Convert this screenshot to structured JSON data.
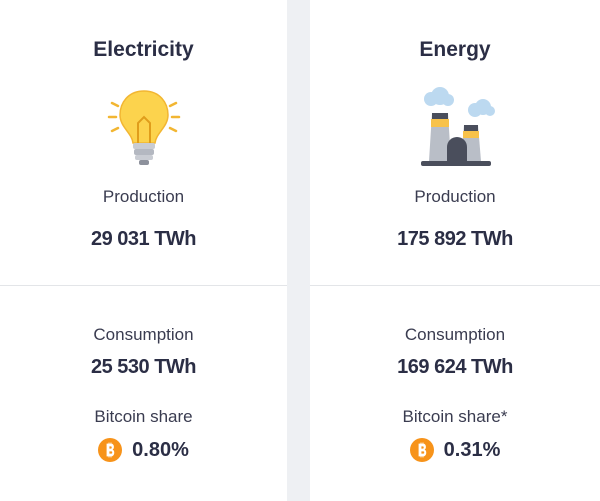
{
  "cards": [
    {
      "title": "Electricity",
      "production_label": "Production",
      "production": "29 031 TWh",
      "consumption_label": "Consumption",
      "consumption": "25 530 TWh",
      "share_label": "Bitcoin share",
      "share": "0.80%"
    },
    {
      "title": "Energy",
      "production_label": "Production",
      "production": "175 892 TWh",
      "consumption_label": "Consumption",
      "consumption": "169 624 TWh",
      "share_label": "Bitcoin share*",
      "share": "0.31%"
    }
  ]
}
